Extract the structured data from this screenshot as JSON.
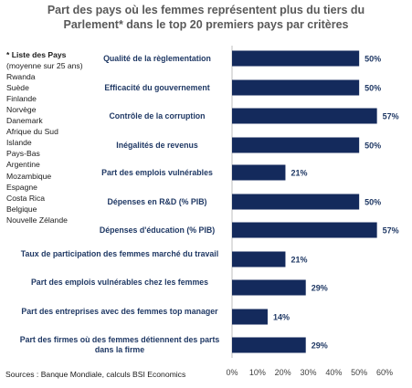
{
  "chart_data": {
    "type": "bar",
    "orientation": "horizontal",
    "title": "Part des pays où les femmes représentent plus du tiers du Parlement* dans le top 20 premiers pays par critères",
    "categories": [
      "Qualité de la règlementation",
      "Efficacité du gouvernement",
      "Contrôle de la corruption",
      "Inégalités de revenus",
      "Part des emplois vulnérables",
      "Dépenses en R&D (% PIB)",
      "Dépenses d'éducation (% PIB)",
      "Taux de participation des femmes marché du travail",
      "Part des emplois vulnérables chez les femmes",
      "Part des entreprises avec des femmes top manager",
      "Part des firmes où des femmes détiennent des parts dans la firme"
    ],
    "values": [
      50,
      50,
      57,
      50,
      21,
      50,
      57,
      21,
      29,
      14,
      29
    ],
    "value_labels": [
      "50%",
      "50%",
      "57%",
      "50%",
      "21%",
      "50%",
      "57%",
      "21%",
      "29%",
      "14%",
      "29%"
    ],
    "xlim": [
      0,
      60
    ],
    "x_ticks": [
      "0%",
      "10%",
      "20%",
      "30%",
      "40%",
      "50%",
      "60%"
    ],
    "bar_color": "#142a5c",
    "label_color": "#1f3864",
    "grid": false
  },
  "title_line1": "Part des pays où les femmes représentent plus du tiers du",
  "title_line2": "Parlement* dans le top 20 premiers pays par critères",
  "country_list": {
    "heading": "* Liste des Pays",
    "subheading": "(moyenne sur 25 ans)",
    "countries": [
      "Rwanda",
      "Suède",
      "Finlande",
      "Norvège",
      "Danemark",
      "Afrique du Sud",
      "Islande",
      "Pays-Bas",
      "Argentine",
      "Mozambique",
      "Espagne",
      "Costa Rica",
      "Belgique",
      "Nouvelle Zélande"
    ]
  },
  "source": "Sources : Banque Mondiale, calculs BSI Economics"
}
